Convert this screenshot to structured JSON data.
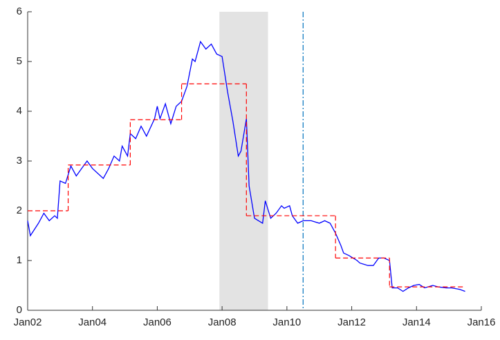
{
  "chart_data": {
    "type": "line",
    "xlim": [
      "2002-01",
      "2016-01"
    ],
    "xticks": [
      {
        "value": "2002-01",
        "label": "Jan02"
      },
      {
        "value": "2004-01",
        "label": "Jan04"
      },
      {
        "value": "2006-01",
        "label": "Jan06"
      },
      {
        "value": "2008-01",
        "label": "Jan08"
      },
      {
        "value": "2010-01",
        "label": "Jan10"
      },
      {
        "value": "2012-01",
        "label": "Jan12"
      },
      {
        "value": "2014-01",
        "label": "Jan14"
      },
      {
        "value": "2016-01",
        "label": "Jan16"
      }
    ],
    "ylim": [
      0,
      6
    ],
    "yticks": [
      0,
      1,
      2,
      3,
      4,
      5,
      6
    ],
    "shaded": {
      "start": "2007-12",
      "end": "2009-06",
      "color": "#e3e3e3"
    },
    "vline": {
      "x": "2010-07",
      "color": "#0072bd"
    },
    "series": [
      {
        "color": "#0000ff",
        "x": [
          "2002-01",
          "2002-02",
          "2002-05",
          "2002-07",
          "2002-09",
          "2002-11",
          "2002-12",
          "2003-01",
          "2003-03",
          "2003-05",
          "2003-07",
          "2003-09",
          "2003-11",
          "2004-01",
          "2004-05",
          "2004-07",
          "2004-09",
          "2004-11",
          "2004-12",
          "2005-02",
          "2005-03",
          "2005-05",
          "2005-07",
          "2005-09",
          "2005-12",
          "2006-01",
          "2006-02",
          "2006-04",
          "2006-06",
          "2006-08",
          "2006-10",
          "2006-12",
          "2007-02",
          "2007-03",
          "2007-05",
          "2007-07",
          "2007-09",
          "2007-11",
          "2008-01",
          "2008-03",
          "2008-05",
          "2008-07",
          "2008-08",
          "2008-10",
          "2008-11",
          "2009-01",
          "2009-04",
          "2009-05",
          "2009-07",
          "2009-09",
          "2009-11",
          "2009-12",
          "2010-02",
          "2010-03",
          "2010-05",
          "2010-07",
          "2010-10",
          "2011-01",
          "2011-03",
          "2011-05",
          "2011-07",
          "2011-09",
          "2011-10",
          "2011-12",
          "2012-03",
          "2012-04",
          "2012-07",
          "2012-09",
          "2012-11",
          "2013-01",
          "2013-03",
          "2013-04",
          "2013-06",
          "2013-08",
          "2013-10",
          "2013-12",
          "2014-02",
          "2014-04",
          "2014-07",
          "2014-09",
          "2014-12",
          "2015-02",
          "2015-05",
          "2015-07"
        ],
        "values": [
          1.8,
          1.5,
          1.75,
          1.95,
          1.8,
          1.9,
          1.85,
          2.6,
          2.55,
          2.9,
          2.7,
          2.85,
          3.0,
          2.85,
          2.65,
          2.85,
          3.1,
          3.0,
          3.3,
          3.1,
          3.55,
          3.45,
          3.7,
          3.5,
          3.85,
          4.1,
          3.85,
          4.15,
          3.75,
          4.1,
          4.2,
          4.5,
          5.05,
          5.0,
          5.4,
          5.25,
          5.35,
          5.15,
          5.1,
          4.4,
          3.8,
          3.1,
          3.2,
          3.85,
          2.5,
          1.85,
          1.75,
          2.2,
          1.85,
          1.95,
          2.1,
          2.05,
          2.1,
          1.9,
          1.75,
          1.8,
          1.8,
          1.75,
          1.8,
          1.75,
          1.55,
          1.3,
          1.15,
          1.1,
          1.0,
          0.95,
          0.9,
          0.9,
          1.05,
          1.05,
          1.0,
          0.45,
          0.45,
          0.38,
          0.45,
          0.5,
          0.52,
          0.45,
          0.5,
          0.47,
          0.45,
          0.45,
          0.42,
          0.38
        ]
      },
      {
        "color": "#ff0000",
        "dashed": true,
        "start": [
          "2002-01",
          "2003-04",
          "2005-03",
          "2006-10",
          "2008-10",
          "2011-07",
          "2013-03"
        ],
        "end": [
          "2003-04",
          "2005-03",
          "2006-10",
          "2008-10",
          "2011-07",
          "2013-03",
          "2015-07"
        ],
        "values": [
          2.0,
          2.92,
          3.83,
          4.55,
          1.9,
          1.05,
          0.47
        ]
      }
    ]
  }
}
